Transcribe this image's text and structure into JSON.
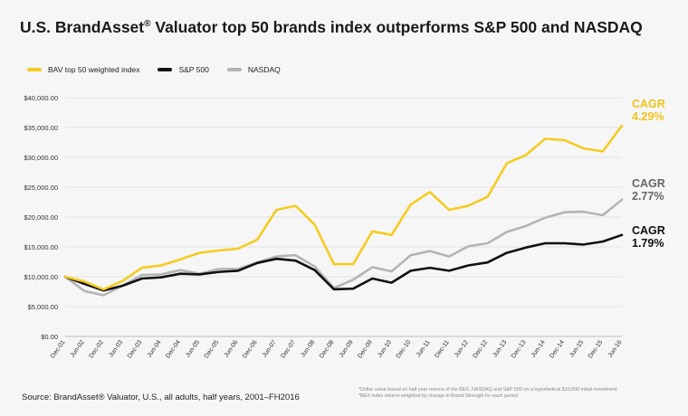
{
  "title": {
    "main": "U.S. BrandAsset",
    "reg": "®",
    "rest": " Valuator top 50 brands index outperforms S&P 500 and NASDAQ"
  },
  "source": "Source: BrandAsset® Valuator, U.S., all adults, half years, 2001–FH2016",
  "footnotes": [
    "*Dollar value based on half year returns of the BEX, NASDAQ and S&P 500 on a hypothetical $10,000 initial investment",
    "*BEX index returns weighted by change in Brand Strength for each period"
  ],
  "colors": {
    "bav": "#f5cc1f",
    "sp500": "#111111",
    "nasdaq": "#b4b4b4",
    "bav_label": "#f0c418",
    "nasdaq_label": "#666666",
    "sp500_label": "#111111"
  },
  "cagr": {
    "bav": {
      "label": "CAGR",
      "value": "4.29%"
    },
    "nasdaq": {
      "label": "CAGR",
      "value": "2.77%"
    },
    "sp500": {
      "label": "CAGR",
      "value": "1.79%"
    }
  },
  "chart_data": {
    "type": "line",
    "title": "U.S. BrandAsset® Valuator top 50 brands index outperforms S&P 500 and NASDAQ",
    "xlabel": "",
    "ylabel": "",
    "ylim": [
      0,
      40000
    ],
    "yticks": [
      0,
      5000,
      10000,
      15000,
      20000,
      25000,
      30000,
      35000,
      40000
    ],
    "ytick_labels": [
      "$0.00",
      "$5,000.00",
      "$10,000.00",
      "$15,000.00",
      "$20,000.00",
      "$25,000.00",
      "$30,000.00",
      "$35,000.00",
      "$40,000.00"
    ],
    "grid": "horizontal",
    "legend_position": "top-left",
    "x": [
      "Dec-01",
      "Jun-02",
      "Dec-02",
      "Jun-03",
      "Dec-03",
      "Jun-04",
      "Dec-04",
      "Jun-05",
      "Dec-05",
      "Jun-06",
      "Dec-06",
      "Jun-07",
      "Dec-07",
      "Jun-08",
      "Dec-08",
      "Jun-09",
      "Dec-09",
      "Jun-10",
      "Dec-10",
      "Jun-11",
      "Dec-11",
      "Jun-12",
      "Dec-12",
      "Jun-13",
      "Dec-13",
      "Jun-14",
      "Dec-14",
      "Jun-15",
      "Dec-15",
      "Jun-16"
    ],
    "series": [
      {
        "name": "BAV top 50 weighted index",
        "values": [
          10000,
          9200,
          7900,
          9300,
          11500,
          11900,
          12900,
          14000,
          14400,
          14700,
          16200,
          21200,
          21900,
          18700,
          12100,
          12100,
          17600,
          17000,
          22100,
          24200,
          21200,
          21900,
          23400,
          29000,
          30400,
          33100,
          32900,
          31500,
          31000,
          35300
        ]
      },
      {
        "name": "S&P 500",
        "values": [
          10000,
          8800,
          7700,
          8500,
          9700,
          9900,
          10500,
          10400,
          10800,
          11000,
          12300,
          13000,
          12700,
          11100,
          7900,
          8000,
          9700,
          9000,
          11000,
          11500,
          11000,
          11900,
          12400,
          14000,
          14900,
          15600,
          15600,
          15400,
          15900,
          17000
        ]
      },
      {
        "name": "NASDAQ",
        "values": [
          10000,
          7600,
          6900,
          8500,
          10300,
          10400,
          11100,
          10500,
          11300,
          11300,
          12400,
          13400,
          13600,
          11700,
          8100,
          9500,
          11600,
          10900,
          13600,
          14300,
          13400,
          15100,
          15600,
          17500,
          18500,
          19900,
          20800,
          20900,
          20300,
          22900
        ]
      }
    ]
  }
}
